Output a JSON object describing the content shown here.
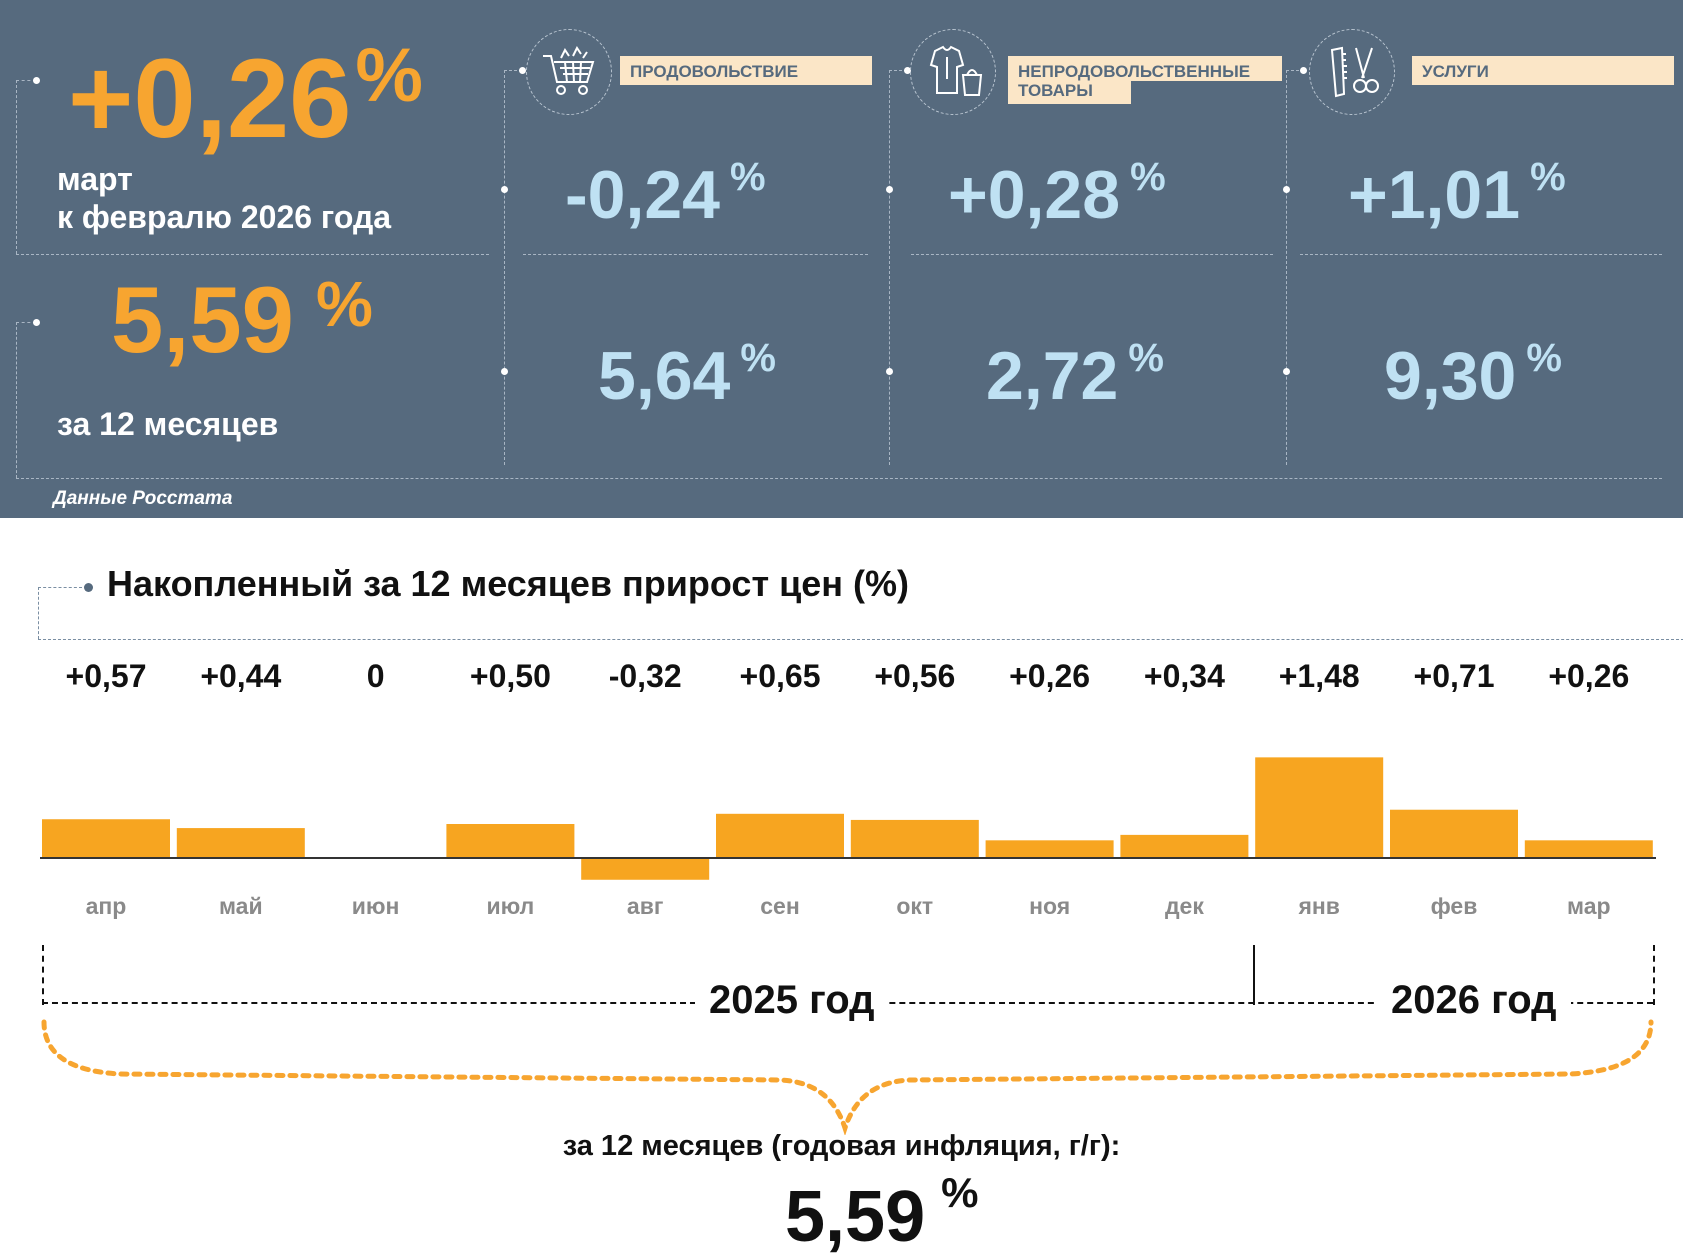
{
  "monthly": {
    "value": "+0,26",
    "unit": "%",
    "label_line1": "март",
    "label_line2": "к февралю 2026 года"
  },
  "yearly": {
    "value": "5,59",
    "unit": "%",
    "label": "за 12 месяцев"
  },
  "categories": [
    {
      "label": "ПРОДОВОЛЬСТВИЕ",
      "icon": "shopping-cart-icon",
      "monthly": "-0,24",
      "yearly": "5,64"
    },
    {
      "label_line1": "НЕПРОДОВОЛЬСТВЕННЫЕ",
      "label_line2": "ТОВАРЫ",
      "icon": "clothes-bag-icon",
      "monthly": "+0,28",
      "yearly": "2,72"
    },
    {
      "label": "УСЛУГИ",
      "icon": "comb-scissors-icon",
      "monthly": "+1,01",
      "yearly": "9,30"
    }
  ],
  "percent_sign": "%",
  "source": "Данные Росстата",
  "colors": {
    "panel_bg": "#566a7e",
    "accent_orange": "#f7a530",
    "value_blue": "#bfe1f3",
    "label_bg": "#fbe6c7",
    "bar": "#f7a520"
  },
  "chart_data": {
    "type": "bar",
    "title": "Накопленный за 12 месяцев прирост цен (%)",
    "categories": [
      "апр",
      "май",
      "июн",
      "июл",
      "авг",
      "сен",
      "окт",
      "ноя",
      "дек",
      "янв",
      "фев",
      "мар"
    ],
    "values": [
      0.57,
      0.44,
      0,
      0.5,
      -0.32,
      0.65,
      0.56,
      0.26,
      0.34,
      1.48,
      0.71,
      0.26
    ],
    "value_labels": [
      "+0,57",
      "+0,44",
      "0",
      "+0,50",
      "-0,32",
      "+0,65",
      "+0,56",
      "+0,26",
      "+0,34",
      "+1,48",
      "+0,71",
      "+0,26"
    ],
    "year_groups": [
      {
        "label": "2025 год",
        "months": 9
      },
      {
        "label": "2026 год",
        "months": 3
      }
    ],
    "summary_label": "за 12 месяцев (годовая инфляция, г/г):",
    "summary_value": "5,59",
    "summary_unit": "%",
    "grid": false,
    "legend": "none"
  }
}
